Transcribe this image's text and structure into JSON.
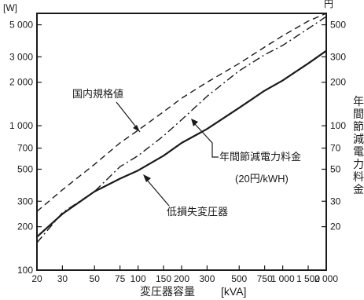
{
  "chart_data": {
    "type": "line",
    "xlabel": "変圧器容量",
    "xunit": "[kVA]",
    "x_scale": "log",
    "xlim": [
      20,
      2000
    ],
    "x_ticks": [
      20,
      30,
      50,
      75,
      100,
      150,
      200,
      300,
      500,
      750,
      1000,
      1500,
      2000
    ],
    "x_tick_labels": [
      "20",
      "30",
      "50",
      "75",
      "100",
      "150",
      "200",
      "300",
      "500",
      "750",
      "1 000",
      "1 500",
      "2 000"
    ],
    "y_left_unit": "[W]",
    "y_left_scale": "log",
    "ylim_left": [
      100,
      6000
    ],
    "y_left_ticks": [
      5000,
      3000,
      2000,
      1000,
      700,
      500,
      300,
      200,
      100
    ],
    "y_left_tick_labels": [
      "5 000",
      "3 000",
      "2 000",
      "1 000",
      "700",
      "500",
      "300",
      "200",
      "100"
    ],
    "y_right_unit": "円",
    "y_right_label": "年間節減電力料金",
    "y_right_scale": "log",
    "ylim_right": [
      10,
      600
    ],
    "y_right_ticks": [
      500,
      300,
      200,
      100,
      70,
      50,
      30,
      20
    ],
    "y_right_tick_labels": [
      "500",
      "300",
      "200",
      "100",
      "70",
      "50",
      "30",
      "20"
    ],
    "grid": false,
    "series": [
      {
        "name": "国内規格値",
        "style": "dashed",
        "axis": "left",
        "x": [
          20,
          30,
          50,
          75,
          100,
          150,
          200,
          300,
          500,
          750,
          1000,
          1500,
          2000
        ],
        "y": [
          255,
          360,
          540,
          760,
          930,
          1250,
          1550,
          2000,
          2700,
          3500,
          4200,
          5300,
          6000
        ]
      },
      {
        "name": "年間節減電力料金",
        "style": "dashdot",
        "axis": "right",
        "x": [
          20,
          30,
          50,
          75,
          100,
          150,
          200,
          300,
          500,
          750,
          1000,
          1500,
          2000
        ],
        "y": [
          15.5,
          25,
          35,
          52,
          62,
          85,
          110,
          160,
          240,
          310,
          360,
          470,
          570
        ]
      },
      {
        "name": "低損失変圧器",
        "style": "solid",
        "axis": "left",
        "x": [
          20,
          30,
          50,
          75,
          100,
          150,
          200,
          300,
          500,
          750,
          1000,
          1500,
          2000
        ],
        "y": [
          170,
          245,
          350,
          430,
          490,
          620,
          760,
          950,
          1330,
          1750,
          2060,
          2700,
          3300
        ]
      }
    ],
    "annotations": [
      {
        "text": "国内規格値"
      },
      {
        "text": "年間節減電力料金"
      },
      {
        "text": "(20円/kWH)"
      },
      {
        "text": "低損失変圧器"
      }
    ]
  }
}
